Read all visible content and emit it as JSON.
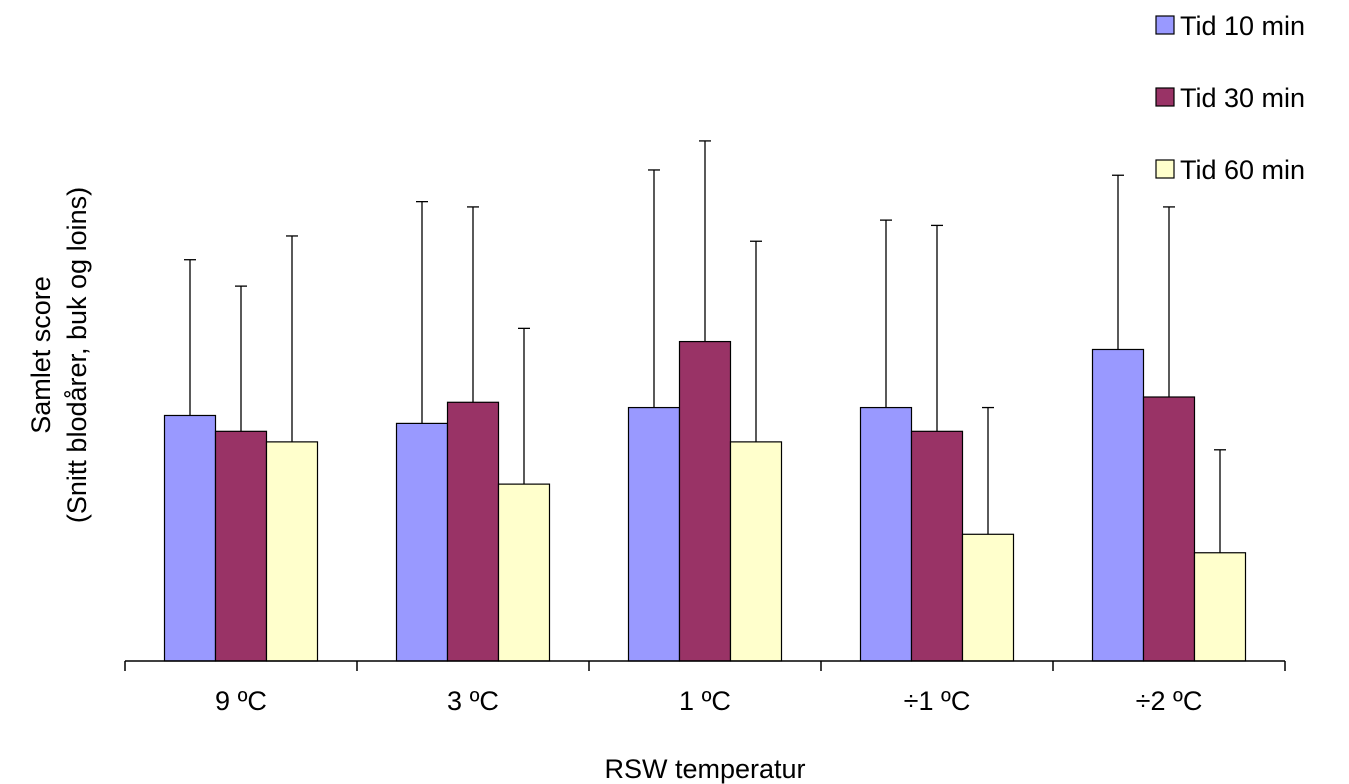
{
  "chart_data": {
    "type": "bar",
    "title": "",
    "xlabel": "RSW temperatur",
    "ylabel_line1": "Samlet score",
    "ylabel_line2": "(Snitt blodårer, buk og loins)",
    "categories": [
      "9 ºC",
      "3 ºC",
      "1 ºC",
      "÷1 ºC",
      "÷2 ºC"
    ],
    "ylim": [
      0,
      100
    ],
    "grid": false,
    "legend_position": "top-right",
    "series": [
      {
        "name": "Tid 10 min",
        "color": "#9999ff",
        "values": [
          46.5,
          45.0,
          48.0,
          48.0,
          59.0
        ],
        "errors": [
          29.5,
          42.0,
          45.0,
          35.5,
          33.0
        ]
      },
      {
        "name": "Tid 30 min",
        "color": "#993366",
        "values": [
          43.5,
          49.0,
          60.5,
          43.5,
          50.0
        ],
        "errors": [
          27.5,
          37.0,
          38.0,
          39.0,
          36.0
        ]
      },
      {
        "name": "Tid 60 min",
        "color": "#ffffcc",
        "values": [
          41.5,
          33.5,
          41.5,
          24.0,
          20.5
        ],
        "errors": [
          39.0,
          29.5,
          38.0,
          24.0,
          19.5
        ]
      }
    ]
  }
}
